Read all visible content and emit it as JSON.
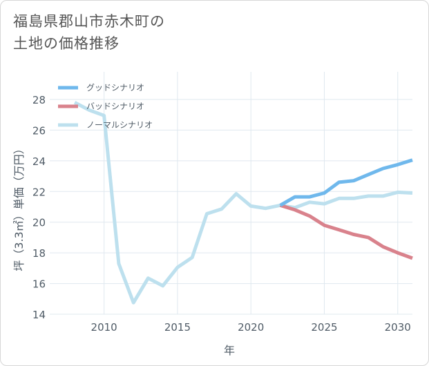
{
  "title": {
    "line1": "福島県郡山市赤木町の",
    "line2": "土地の価格推移"
  },
  "colors": {
    "good": "#6fb8ec",
    "bad": "#d9828c",
    "normal": "#bde0ee",
    "grid": "#dfe8ef"
  },
  "chart_data": {
    "type": "line",
    "xlabel": "年",
    "ylabel": "坪（3.3㎡）単価（万円）",
    "xlim": [
      2006.3,
      2031
    ],
    "ylim": [
      14,
      29.8
    ],
    "xticks": [
      2010,
      2015,
      2020,
      2025,
      2030
    ],
    "yticks": [
      14,
      16,
      18,
      20,
      22,
      24,
      26,
      28
    ],
    "legend_position": "top-left",
    "series": [
      {
        "name": "グッドシナリオ",
        "color": "#6fb8ec",
        "points": [
          [
            2022,
            21.1
          ],
          [
            2023,
            21.65
          ],
          [
            2024,
            21.65
          ],
          [
            2025,
            21.9
          ],
          [
            2026,
            22.6
          ],
          [
            2027,
            22.7
          ],
          [
            2028,
            23.1
          ],
          [
            2029,
            23.5
          ],
          [
            2030,
            23.75
          ],
          [
            2031,
            24.05
          ]
        ]
      },
      {
        "name": "バッドシナリオ",
        "color": "#d9828c",
        "points": [
          [
            2022,
            21.1
          ],
          [
            2023,
            20.8
          ],
          [
            2024,
            20.4
          ],
          [
            2025,
            19.8
          ],
          [
            2026,
            19.5
          ],
          [
            2027,
            19.2
          ],
          [
            2028,
            19.0
          ],
          [
            2029,
            18.4
          ],
          [
            2030,
            18.0
          ],
          [
            2031,
            17.65
          ]
        ]
      },
      {
        "name": "ノーマルシナリオ",
        "color": "#bde0ee",
        "points": [
          [
            2008,
            27.8
          ],
          [
            2009,
            27.3
          ],
          [
            2010,
            26.95
          ],
          [
            2011,
            17.3
          ],
          [
            2012,
            14.75
          ],
          [
            2013,
            16.35
          ],
          [
            2014,
            15.85
          ],
          [
            2015,
            17.05
          ],
          [
            2016,
            17.7
          ],
          [
            2017,
            20.55
          ],
          [
            2018,
            20.85
          ],
          [
            2019,
            21.85
          ],
          [
            2020,
            21.05
          ],
          [
            2021,
            20.9
          ],
          [
            2022,
            21.1
          ],
          [
            2023,
            20.95
          ],
          [
            2024,
            21.3
          ],
          [
            2025,
            21.2
          ],
          [
            2026,
            21.55
          ],
          [
            2027,
            21.55
          ],
          [
            2028,
            21.7
          ],
          [
            2029,
            21.7
          ],
          [
            2030,
            21.95
          ],
          [
            2031,
            21.9
          ]
        ]
      }
    ]
  }
}
